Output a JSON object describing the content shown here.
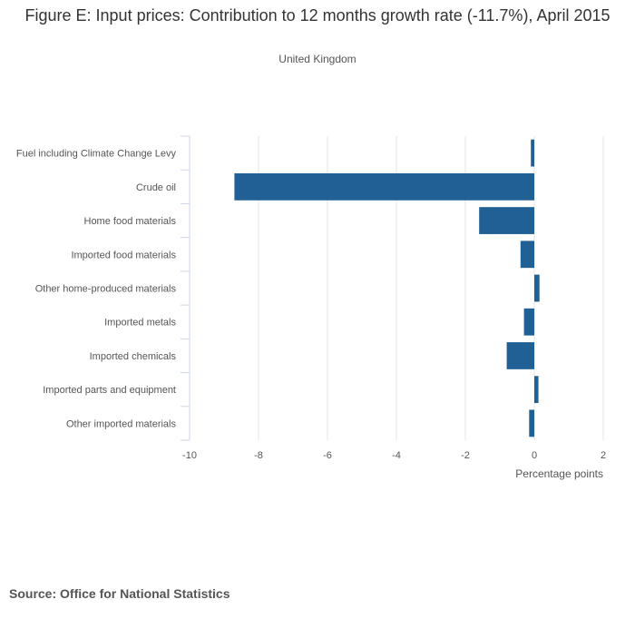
{
  "title": "Figure E: Input prices: Contribution to 12 months growth rate (-11.7%), April 2015",
  "subtitle": "United Kingdom",
  "source": "Source: Office for National Statistics",
  "colors": {
    "bar": "#206095",
    "grid": "#e6e6e6",
    "axis": "#ccd6eb",
    "text": "#555555"
  },
  "chart_data": {
    "type": "bar",
    "orientation": "horizontal",
    "title": "Figure E: Input prices: Contribution to 12 months growth rate (-11.7%), April 2015",
    "subtitle": "United Kingdom",
    "categories": [
      "Fuel including Climate Change Levy",
      "Crude oil",
      "Home food materials",
      "Imported food materials",
      "Other home-produced materials",
      "Imported metals",
      "Imported chemicals",
      "Imported parts and equipment",
      "Other imported materials"
    ],
    "values": [
      -0.1,
      -8.7,
      -1.6,
      -0.4,
      0.15,
      -0.3,
      -0.8,
      0.12,
      -0.15
    ],
    "xlabel": "Percentage points",
    "ylabel": "",
    "xlim": [
      -10,
      2
    ],
    "xticks": [
      -10,
      -8,
      -6,
      -4,
      -2,
      0,
      2
    ],
    "grid": true,
    "legend": "none"
  }
}
